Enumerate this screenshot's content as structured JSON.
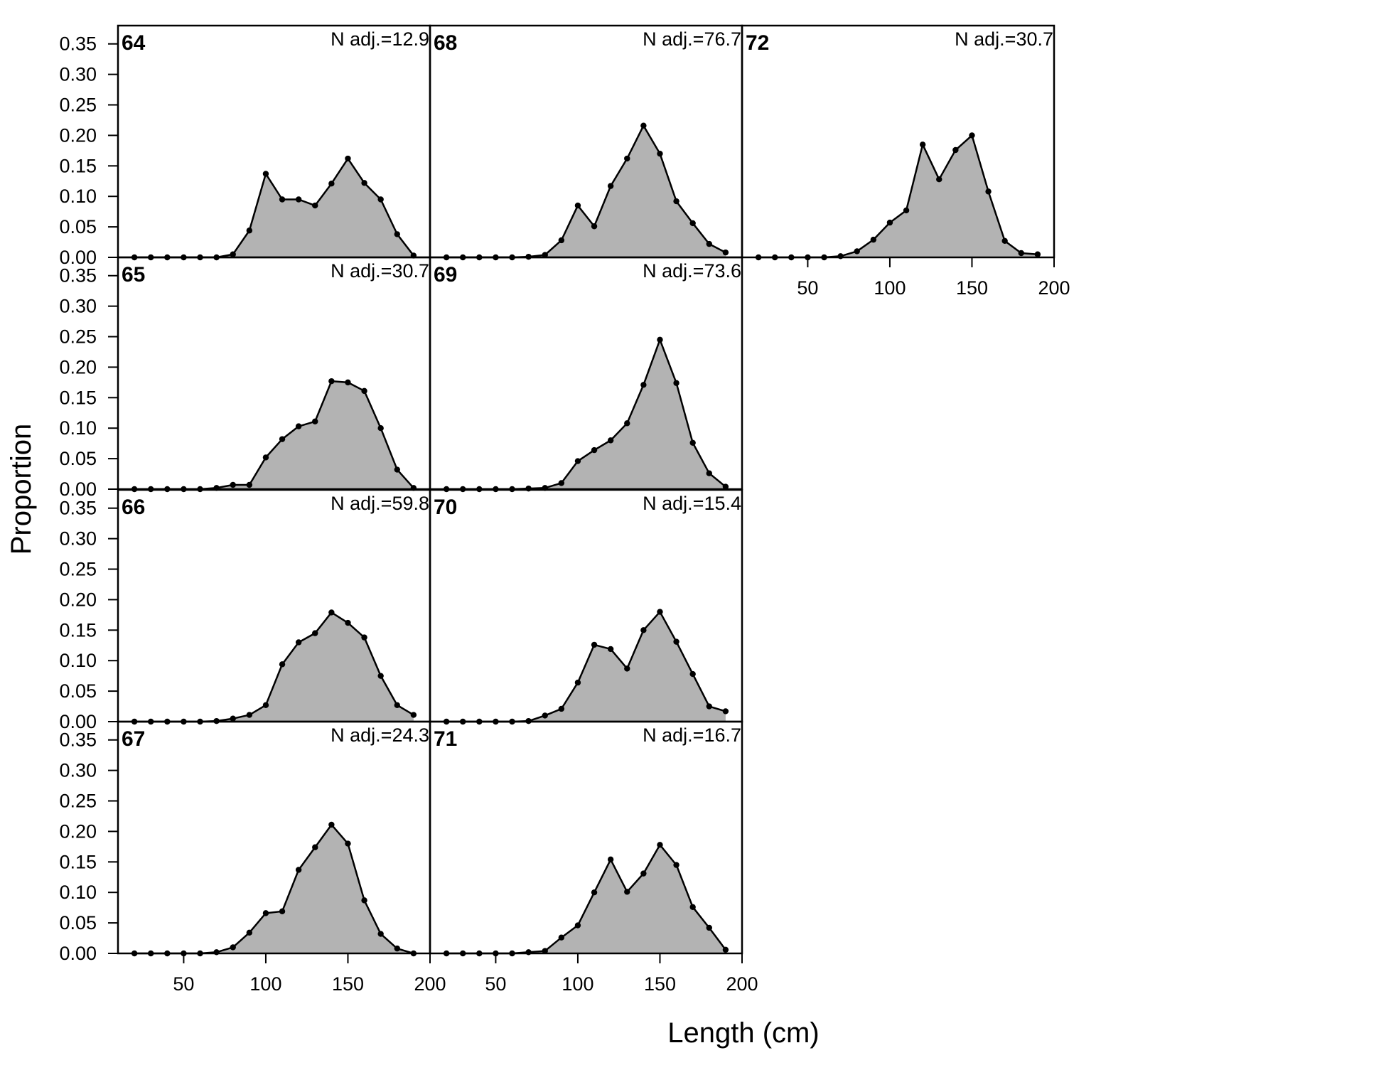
{
  "chart_data": {
    "type": "area",
    "xlabel": "Length (cm)",
    "ylabel": "Proportion",
    "xlim": [
      10,
      200
    ],
    "ylim": [
      0,
      0.38
    ],
    "x_ticks": [
      50,
      100,
      150,
      200
    ],
    "y_ticks": [
      "0.00",
      "0.05",
      "0.10",
      "0.15",
      "0.20",
      "0.25",
      "0.30",
      "0.35"
    ],
    "x": [
      20,
      30,
      40,
      50,
      60,
      70,
      80,
      90,
      100,
      110,
      120,
      130,
      140,
      150,
      160,
      170,
      180,
      190
    ],
    "panels": [
      {
        "label": "64",
        "n_adj": "N adj.=12.9",
        "col": 0,
        "row": 0,
        "values": [
          0,
          0,
          0,
          0,
          0,
          0,
          0.005,
          0.044,
          0.137,
          0.095,
          0.095,
          0.085,
          0.121,
          0.162,
          0.122,
          0.095,
          0.038,
          0.003
        ]
      },
      {
        "label": "65",
        "n_adj": "N adj.=30.7",
        "col": 0,
        "row": 1,
        "values": [
          0,
          0,
          0,
          0,
          0,
          0.002,
          0.007,
          0.007,
          0.052,
          0.082,
          0.103,
          0.111,
          0.177,
          0.175,
          0.161,
          0.1,
          0.032,
          0.002
        ]
      },
      {
        "label": "66",
        "n_adj": "N adj.=59.8",
        "col": 0,
        "row": 2,
        "values": [
          0,
          0,
          0,
          0,
          0,
          0.001,
          0.005,
          0.011,
          0.027,
          0.094,
          0.13,
          0.145,
          0.179,
          0.162,
          0.138,
          0.075,
          0.027,
          0.011
        ]
      },
      {
        "label": "67",
        "n_adj": "N adj.=24.3",
        "col": 0,
        "row": 3,
        "values": [
          0,
          0,
          0,
          0,
          0,
          0.002,
          0.01,
          0.034,
          0.066,
          0.069,
          0.137,
          0.174,
          0.211,
          0.18,
          0.087,
          0.032,
          0.008,
          0
        ]
      },
      {
        "label": "68",
        "n_adj": "N adj.=76.7",
        "col": 1,
        "row": 0,
        "values": [
          0,
          0,
          0,
          0,
          0,
          0.001,
          0.004,
          0.028,
          0.085,
          0.051,
          0.117,
          0.162,
          0.216,
          0.17,
          0.092,
          0.056,
          0.022,
          0.008
        ]
      },
      {
        "label": "69",
        "n_adj": "N adj.=73.6",
        "col": 1,
        "row": 1,
        "values": [
          0,
          0,
          0,
          0,
          0,
          0.001,
          0.002,
          0.01,
          0.046,
          0.064,
          0.08,
          0.108,
          0.171,
          0.245,
          0.174,
          0.076,
          0.026,
          0.004
        ]
      },
      {
        "label": "70",
        "n_adj": "N adj.=15.4",
        "col": 1,
        "row": 2,
        "values": [
          0,
          0,
          0,
          0,
          0,
          0.001,
          0.01,
          0.021,
          0.064,
          0.126,
          0.119,
          0.087,
          0.15,
          0.18,
          0.131,
          0.078,
          0.025,
          0.017
        ]
      },
      {
        "label": "71",
        "n_adj": "N adj.=16.7",
        "col": 1,
        "row": 3,
        "values": [
          0,
          0,
          0,
          0,
          0,
          0.002,
          0.004,
          0.026,
          0.046,
          0.1,
          0.154,
          0.101,
          0.131,
          0.178,
          0.145,
          0.076,
          0.042,
          0.006
        ]
      },
      {
        "label": "72",
        "n_adj": "N adj.=30.7",
        "col": 2,
        "row": 0,
        "values": [
          0,
          0,
          0,
          0,
          0,
          0.002,
          0.01,
          0.029,
          0.057,
          0.077,
          0.185,
          0.128,
          0.176,
          0.2,
          0.108,
          0.027,
          0.007,
          0.005
        ]
      }
    ]
  }
}
